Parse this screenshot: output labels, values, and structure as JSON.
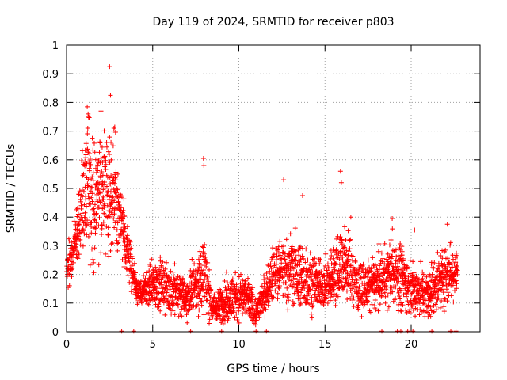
{
  "chart_data": {
    "type": "scatter",
    "title": "Day 119 of 2024, SRMTID for receiver p803",
    "xlabel": "GPS time / hours",
    "ylabel": "SRMTID / TECUs",
    "xlim": [
      0,
      24
    ],
    "ylim": [
      0,
      1
    ],
    "x_ticks": [
      0,
      5,
      10,
      15,
      20
    ],
    "x_tick_labels": [
      "0",
      "5",
      "10",
      "15",
      "20"
    ],
    "y_ticks": [
      0,
      0.1,
      0.2,
      0.3,
      0.4,
      0.5,
      0.6,
      0.7,
      0.8,
      0.9,
      1
    ],
    "y_tick_labels": [
      "0",
      "0.1",
      "0.2",
      "0.3",
      "0.4",
      "0.5",
      "0.6",
      "0.7",
      "0.8",
      "0.9",
      "1"
    ],
    "grid": true,
    "marker": "+",
    "series": [
      {
        "name": "SRMTID",
        "color": "#ff0000",
        "envelope": [
          {
            "x": 0.0,
            "mean": 0.22,
            "spread": 0.05
          },
          {
            "x": 0.4,
            "mean": 0.27,
            "spread": 0.07
          },
          {
            "x": 0.8,
            "mean": 0.4,
            "spread": 0.1
          },
          {
            "x": 1.2,
            "mean": 0.55,
            "spread": 0.14
          },
          {
            "x": 1.6,
            "mean": 0.45,
            "spread": 0.14
          },
          {
            "x": 2.0,
            "mean": 0.5,
            "spread": 0.15
          },
          {
            "x": 2.5,
            "mean": 0.52,
            "spread": 0.15
          },
          {
            "x": 3.0,
            "mean": 0.42,
            "spread": 0.12
          },
          {
            "x": 3.4,
            "mean": 0.32,
            "spread": 0.07
          },
          {
            "x": 3.8,
            "mean": 0.22,
            "spread": 0.05
          },
          {
            "x": 4.2,
            "mean": 0.13,
            "spread": 0.03
          },
          {
            "x": 5.0,
            "mean": 0.17,
            "spread": 0.05
          },
          {
            "x": 6.0,
            "mean": 0.15,
            "spread": 0.06
          },
          {
            "x": 7.0,
            "mean": 0.12,
            "spread": 0.05
          },
          {
            "x": 8.0,
            "mean": 0.2,
            "spread": 0.08
          },
          {
            "x": 8.5,
            "mean": 0.08,
            "spread": 0.03
          },
          {
            "x": 9.5,
            "mean": 0.12,
            "spread": 0.05
          },
          {
            "x": 10.5,
            "mean": 0.12,
            "spread": 0.05
          },
          {
            "x": 11.0,
            "mean": 0.06,
            "spread": 0.03
          },
          {
            "x": 12.0,
            "mean": 0.2,
            "spread": 0.06
          },
          {
            "x": 13.0,
            "mean": 0.22,
            "spread": 0.08
          },
          {
            "x": 14.0,
            "mean": 0.18,
            "spread": 0.07
          },
          {
            "x": 15.0,
            "mean": 0.16,
            "spread": 0.05
          },
          {
            "x": 16.0,
            "mean": 0.25,
            "spread": 0.09
          },
          {
            "x": 17.0,
            "mean": 0.15,
            "spread": 0.06
          },
          {
            "x": 18.0,
            "mean": 0.17,
            "spread": 0.06
          },
          {
            "x": 19.0,
            "mean": 0.22,
            "spread": 0.08
          },
          {
            "x": 20.0,
            "mean": 0.15,
            "spread": 0.06
          },
          {
            "x": 21.0,
            "mean": 0.13,
            "spread": 0.05
          },
          {
            "x": 22.0,
            "mean": 0.2,
            "spread": 0.07
          },
          {
            "x": 22.7,
            "mean": 0.22,
            "spread": 0.06
          }
        ],
        "spikes": [
          {
            "x": 1.2,
            "y": 0.785
          },
          {
            "x": 1.25,
            "y": 0.76
          },
          {
            "x": 2.0,
            "y": 0.77
          },
          {
            "x": 2.5,
            "y": 0.925
          },
          {
            "x": 2.55,
            "y": 0.825
          },
          {
            "x": 2.75,
            "y": 0.71
          },
          {
            "x": 7.95,
            "y": 0.605
          },
          {
            "x": 7.97,
            "y": 0.58
          },
          {
            "x": 12.6,
            "y": 0.53
          },
          {
            "x": 13.7,
            "y": 0.475
          },
          {
            "x": 15.9,
            "y": 0.56
          },
          {
            "x": 15.95,
            "y": 0.52
          },
          {
            "x": 16.5,
            "y": 0.4
          },
          {
            "x": 18.9,
            "y": 0.395
          },
          {
            "x": 20.2,
            "y": 0.355
          },
          {
            "x": 22.1,
            "y": 0.375
          }
        ],
        "near_zero_points": [
          3.2,
          3.9,
          7.2,
          9.0,
          11.0,
          11.6,
          18.3,
          19.2,
          19.4,
          19.8,
          20.1,
          21.2,
          22.3,
          22.6
        ]
      }
    ]
  }
}
